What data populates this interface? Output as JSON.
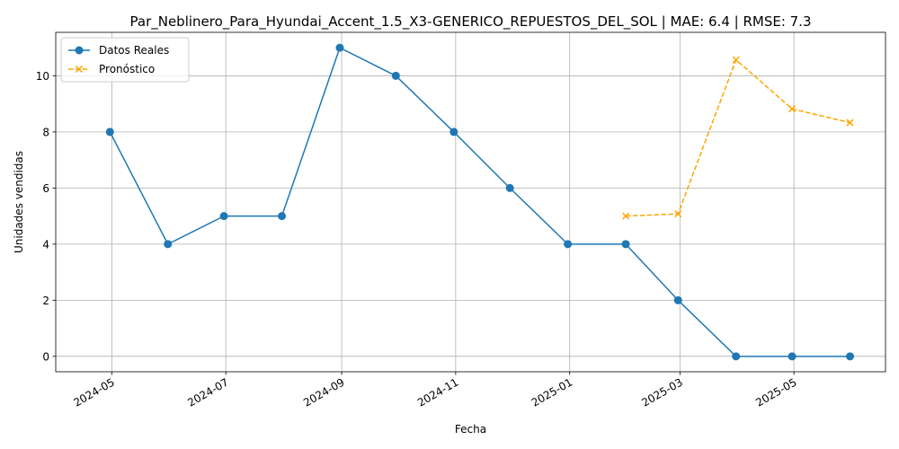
{
  "chart_data": {
    "type": "line",
    "title": "Par_Neblinero_Para_Hyundai_Accent_1.5_X3-GENERICO_REPUESTOS_DEL_SOL | MAE: 6.4 | RMSE: 7.3",
    "xlabel": "Fecha",
    "ylabel": "Unidades vendidas",
    "ylim": [
      -0.55,
      11.55
    ],
    "xlim": [
      "2024-04-01",
      "2025-06-19"
    ],
    "x_ticks": [
      "2024-05",
      "2024-07",
      "2024-09",
      "2024-11",
      "2025-01",
      "2025-03",
      "2025-05"
    ],
    "x_tick_dates": [
      "2024-05-01",
      "2024-07-01",
      "2024-09-01",
      "2024-11-01",
      "2025-01-01",
      "2025-03-01",
      "2025-05-01"
    ],
    "y_ticks": [
      0,
      2,
      4,
      6,
      8,
      10
    ],
    "grid": true,
    "legend_position": "top-left",
    "series": [
      {
        "name": "Datos Reales",
        "color": "#1f77b4",
        "line_style": "solid",
        "marker": "circle",
        "x": [
          "2024-04-30",
          "2024-05-31",
          "2024-06-30",
          "2024-07-31",
          "2024-08-31",
          "2024-09-30",
          "2024-10-31",
          "2024-11-30",
          "2024-12-31",
          "2025-01-31",
          "2025-02-28",
          "2025-03-31",
          "2025-04-30",
          "2025-05-31"
        ],
        "values": [
          8,
          4,
          5,
          5,
          11,
          10,
          8,
          6,
          4,
          4,
          2,
          0,
          0,
          0
        ]
      },
      {
        "name": "Pronóstico",
        "color": "#ffa500",
        "line_style": "dashed",
        "marker": "x",
        "x": [
          "2025-01-31",
          "2025-02-28",
          "2025-03-31",
          "2025-04-30",
          "2025-05-31"
        ],
        "values": [
          5.0,
          5.08,
          10.57,
          8.82,
          8.33
        ]
      }
    ]
  }
}
